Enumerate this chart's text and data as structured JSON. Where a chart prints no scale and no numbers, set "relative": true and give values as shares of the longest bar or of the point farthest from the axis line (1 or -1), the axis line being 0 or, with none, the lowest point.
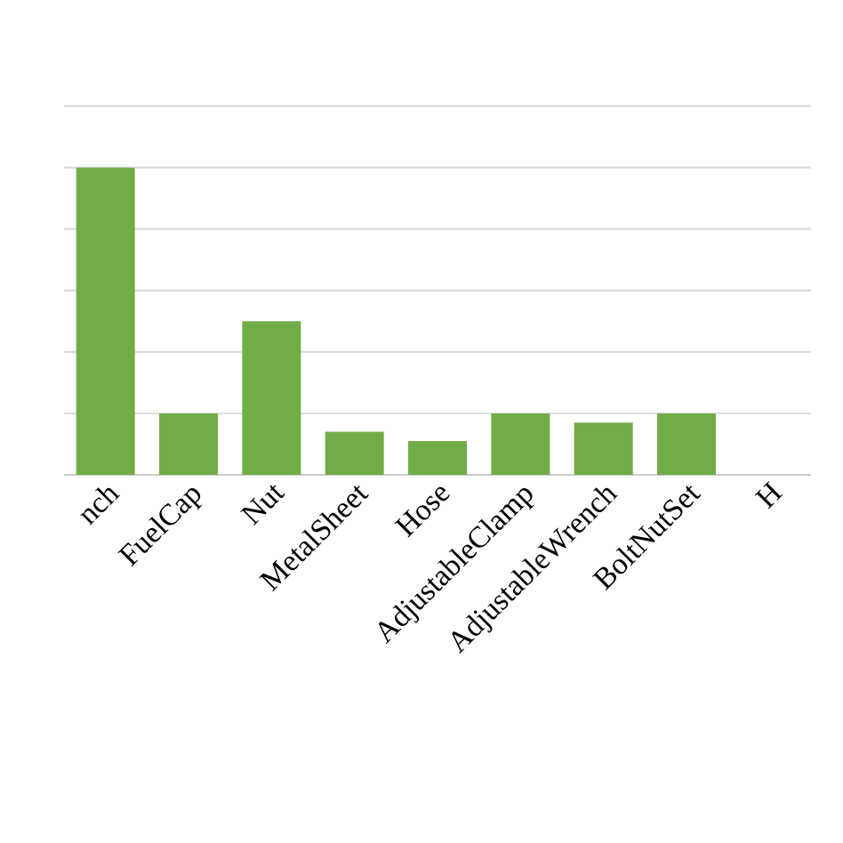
{
  "chart_data": {
    "type": "bar",
    "relative": true,
    "grid": "y",
    "color": "#70ad47",
    "categories": [
      "nch",
      "FuelCap",
      "Nut",
      "MetalSheet",
      "Hose",
      "AdjustableClamp",
      "AdjustableWrench",
      "BoltNutSet",
      "H"
    ],
    "values": [
      1,
      0.2,
      0.5,
      0.14,
      0.11,
      0.2,
      0.17,
      0.2,
      null
    ]
  }
}
